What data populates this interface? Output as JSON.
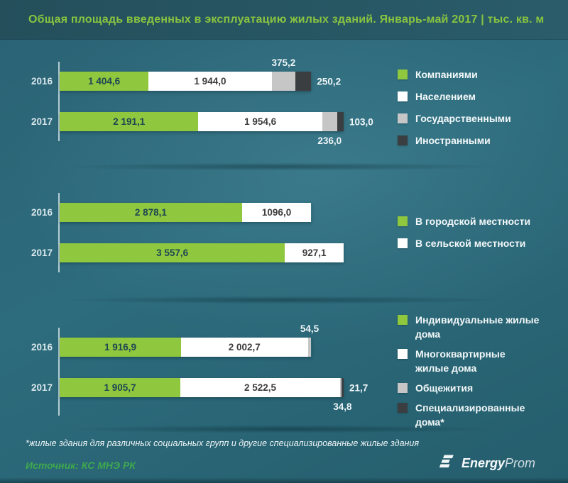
{
  "header": {
    "title": "Общая площадь введенных в эксплуатацию жилых зданий. Январь-май 2017  |  тыс. кв. м"
  },
  "footer": {
    "footnote": "*жилые здания для различных социальных групп и другие специализированные жилые здания",
    "source": "Источник: КС МНЭ РК",
    "logo_bold": "Energy",
    "logo_light": "Prom"
  },
  "colors": {
    "green": "#8fc73e",
    "white": "#ffffff",
    "gray": "#c6c6c6",
    "dark": "#3b3e40",
    "title_green": "#88c440",
    "source_green": "#3fa84f",
    "background_teal": "#2d6c7d"
  },
  "chart_data": [
    {
      "type": "bar",
      "stacked": true,
      "orientation": "horizontal",
      "legend_position": "right",
      "categories": [
        "2016",
        "2017"
      ],
      "series": [
        {
          "name": "Компаниями",
          "color": "#8fc73e",
          "text_color": "#1e4653",
          "values": [
            1404.6,
            2191.1
          ]
        },
        {
          "name": "Населением",
          "color": "#ffffff",
          "text_color": "#3c3c3c",
          "values": [
            1944.0,
            1954.6
          ]
        },
        {
          "name": "Государственными",
          "color": "#c6c6c6",
          "text_color": "#3c3c3c",
          "values": [
            375.2,
            236.0
          ]
        },
        {
          "name": "Иностранными",
          "color": "#3b3e40",
          "text_color": "#f0f0f0",
          "values": [
            250.2,
            103.0
          ]
        }
      ],
      "value_labels": [
        [
          "1 404,6",
          "1 944,0",
          "375,2",
          "250,2"
        ],
        [
          "2 191,1",
          "1 954,6",
          "236,0",
          "103,0"
        ]
      ],
      "label_pos": [
        [
          "in",
          "in",
          "above",
          "right"
        ],
        [
          "in",
          "in",
          "below",
          "right"
        ]
      ]
    },
    {
      "type": "bar",
      "stacked": true,
      "orientation": "horizontal",
      "legend_position": "right",
      "categories": [
        "2016",
        "2017"
      ],
      "series": [
        {
          "name": "В городской местности",
          "color": "#8fc73e",
          "text_color": "#1e4653",
          "values": [
            2878.1,
            3557.6
          ]
        },
        {
          "name": "В сельской местности",
          "color": "#ffffff",
          "text_color": "#3c3c3c",
          "values": [
            1096.0,
            927.1
          ]
        }
      ],
      "value_labels": [
        [
          "2 878,1",
          "1096,0"
        ],
        [
          "3 557,6",
          "927,1"
        ]
      ],
      "label_pos": [
        [
          "in",
          "in"
        ],
        [
          "in",
          "in"
        ]
      ]
    },
    {
      "type": "bar",
      "stacked": true,
      "orientation": "horizontal",
      "legend_position": "right",
      "categories": [
        "2016",
        "2017"
      ],
      "series": [
        {
          "name": "Индивидуальные жилые дома",
          "color": "#8fc73e",
          "text_color": "#1e4653",
          "values": [
            1916.9,
            1905.7
          ]
        },
        {
          "name": "Многоквартирные жилые дома",
          "color": "#ffffff",
          "text_color": "#3c3c3c",
          "values": [
            2002.7,
            2522.5
          ]
        },
        {
          "name": "Общежития",
          "color": "#c6c6c6",
          "text_color": "#3c3c3c",
          "values": [
            54.5,
            21.7
          ]
        },
        {
          "name": "Специализированные дома*",
          "color": "#3b3e40",
          "text_color": "#f0f0f0",
          "values": [
            null,
            34.8
          ]
        }
      ],
      "value_labels": [
        [
          "1 916,9",
          "2 002,7",
          "54,5",
          null
        ],
        [
          "1 905,7",
          "2 522,5",
          "21,7",
          "34,8"
        ]
      ],
      "label_pos": [
        [
          "in",
          "in",
          "above",
          null
        ],
        [
          "in",
          "in",
          "right",
          "below"
        ]
      ]
    }
  ]
}
